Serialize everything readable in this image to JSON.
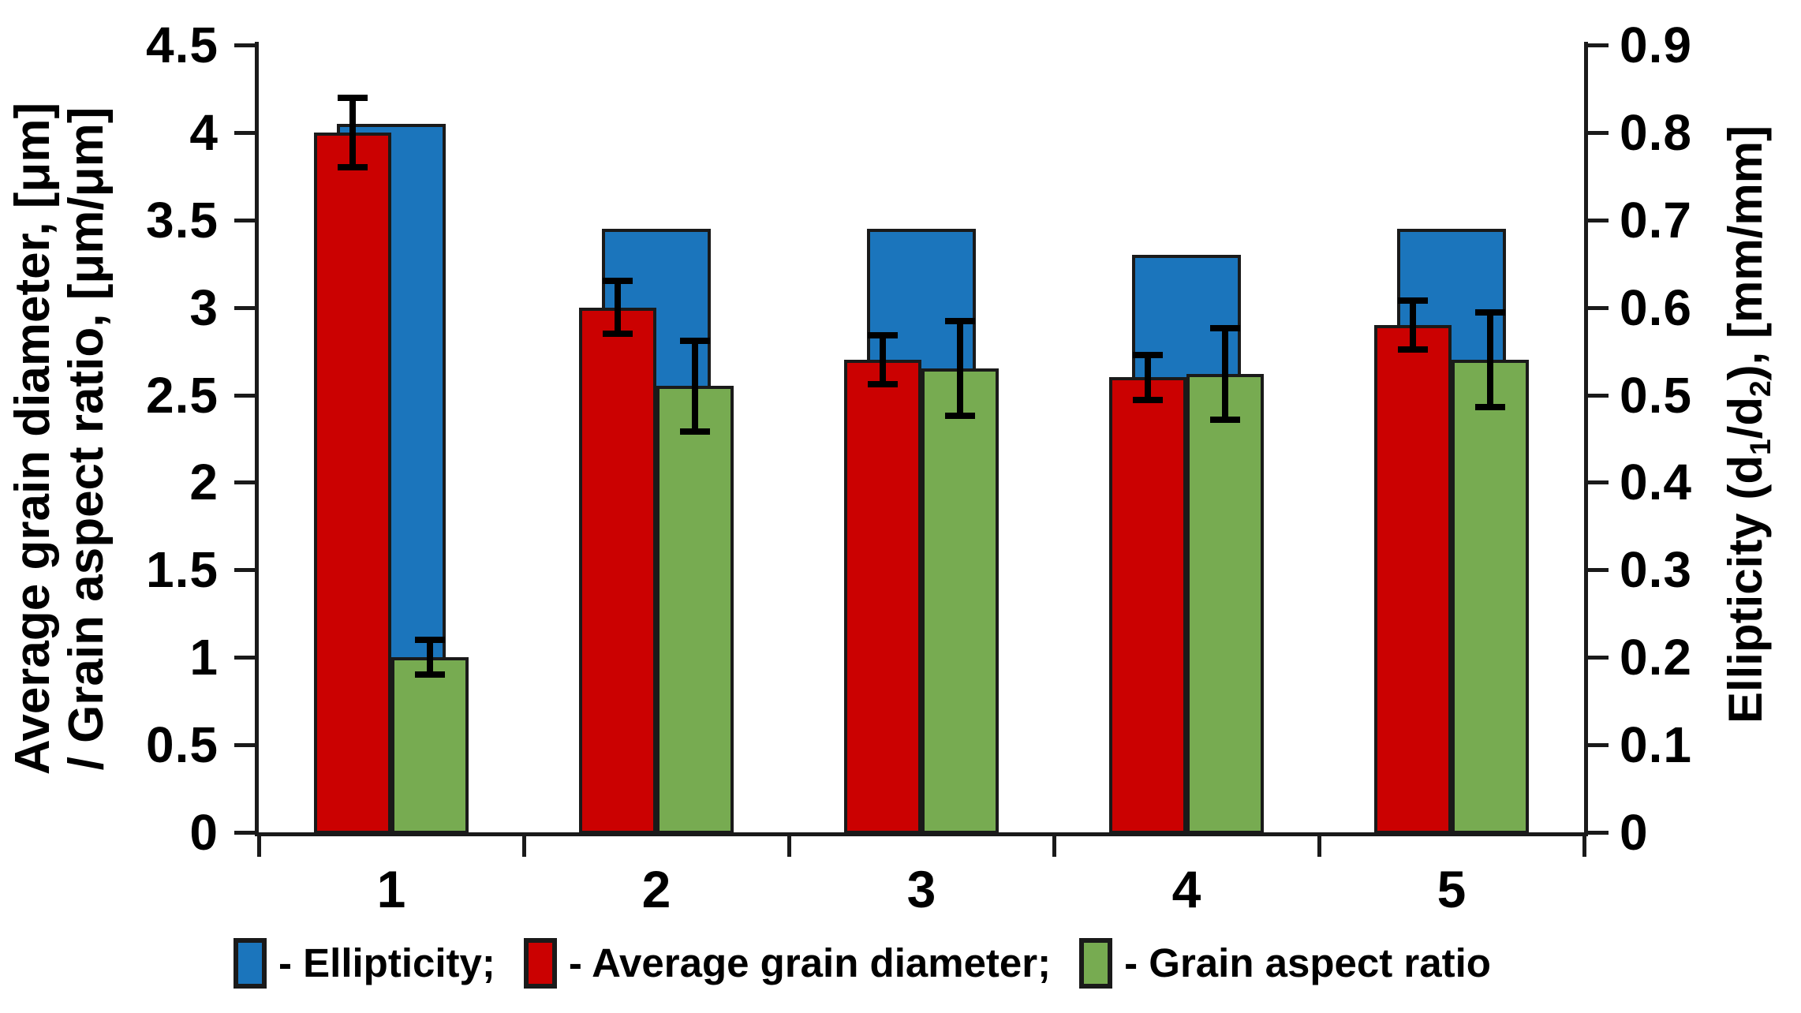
{
  "figure": {
    "background": "#ffffff",
    "axis_color": "#1a1a1a",
    "text_color": "#000000",
    "error_bar_color": "#000000"
  },
  "chart_data": {
    "type": "bar",
    "title": "",
    "categories": [
      "1",
      "2",
      "3",
      "4",
      "5"
    ],
    "grid": false,
    "legend_position": "bottom",
    "series": [
      {
        "name": "Ellipticity",
        "axis": "right",
        "color": "#1B75BC",
        "values": [
          0.81,
          0.69,
          0.69,
          0.66,
          0.69
        ]
      },
      {
        "name": "Average grain diameter",
        "axis": "left",
        "color": "#CB0101",
        "values": [
          4.0,
          3.0,
          2.7,
          2.6,
          2.9
        ],
        "errors": [
          0.2,
          0.15,
          0.14,
          0.13,
          0.14
        ]
      },
      {
        "name": "Grain aspect ratio",
        "axis": "left",
        "color": "#77AB51",
        "values": [
          1.0,
          2.55,
          2.65,
          2.62,
          2.7
        ],
        "errors": [
          0.1,
          0.26,
          0.27,
          0.26,
          0.27
        ]
      }
    ],
    "left_axis": {
      "title_line1": "Average grain diameter, [μm]",
      "title_line2": "/ Grain aspect ratio, [μm/μm]",
      "min": 0,
      "max": 4.5,
      "tick_labels": [
        "4.5",
        "4",
        "3.5",
        "3",
        "2.5",
        "2",
        "1.5",
        "1",
        "0.5",
        "0"
      ]
    },
    "right_axis": {
      "title_pre": "Ellipticity (d",
      "title_sub1": "1",
      "title_mid": "/d",
      "title_sub2": "2",
      "title_post": "), [mm/mm]",
      "min": 0,
      "max": 0.9,
      "tick_labels": [
        "0.9",
        "0.8",
        "0.7",
        "0.6",
        "0.5",
        "0.4",
        "0.3",
        "0.2",
        "0.1",
        "0"
      ]
    },
    "legend": [
      {
        "label": "- Ellipticity;",
        "color": "#1B75BC"
      },
      {
        "label": "- Average grain diameter;",
        "color": "#CB0101"
      },
      {
        "label": "- Grain aspect ratio",
        "color": "#77AB51"
      }
    ]
  }
}
